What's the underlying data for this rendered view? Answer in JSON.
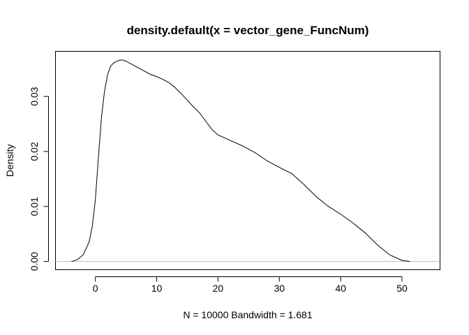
{
  "chart_data": {
    "type": "line",
    "title": "density.default(x = vector_gene_FuncNum)",
    "xlabel": "N = 10000   Bandwidth = 1.681",
    "ylabel": "Density",
    "xlim": [
      -6.5,
      56.2
    ],
    "ylim": [
      -0.0015,
      0.0382
    ],
    "x_ticks": [
      0,
      10,
      20,
      30,
      40,
      50
    ],
    "y_ticks": [
      0.0,
      0.01,
      0.02,
      0.03
    ],
    "x_tick_labels": [
      "0",
      "10",
      "20",
      "30",
      "40",
      "50"
    ],
    "y_tick_labels": [
      "0.00",
      "0.01",
      "0.02",
      "0.03"
    ],
    "zero_line_color": "#bebebe",
    "line_color": "#000000",
    "grid": false,
    "series": [
      {
        "x": [
          -3.9,
          -3.0,
          -2.0,
          -1.0,
          -0.5,
          0.0,
          0.5,
          1.0,
          1.5,
          2.0,
          2.5,
          3.0,
          3.5,
          4.0,
          4.5,
          5.0,
          6.0,
          7.0,
          8.0,
          9.0,
          10.0,
          11.0,
          12.0,
          13.0,
          14.0,
          15.0,
          16.0,
          17.0,
          18.0,
          19.0,
          20.0,
          22.0,
          24.0,
          26.0,
          28.0,
          30.0,
          32.0,
          34.0,
          36.0,
          38.0,
          40.0,
          42.0,
          44.0,
          46.0,
          48.0,
          50.0,
          51.3
        ],
        "y": [
          0.0,
          0.0003,
          0.0012,
          0.0036,
          0.0064,
          0.0112,
          0.019,
          0.0262,
          0.031,
          0.034,
          0.0355,
          0.0361,
          0.0364,
          0.0366,
          0.0366,
          0.0364,
          0.0358,
          0.0352,
          0.0346,
          0.034,
          0.0336,
          0.0331,
          0.0325,
          0.0316,
          0.0305,
          0.0293,
          0.0281,
          0.027,
          0.0255,
          0.024,
          0.023,
          0.022,
          0.021,
          0.0198,
          0.0183,
          0.0171,
          0.016,
          0.014,
          0.0118,
          0.01,
          0.0086,
          0.007,
          0.0052,
          0.003,
          0.0012,
          0.0002,
          0.0
        ]
      }
    ]
  }
}
